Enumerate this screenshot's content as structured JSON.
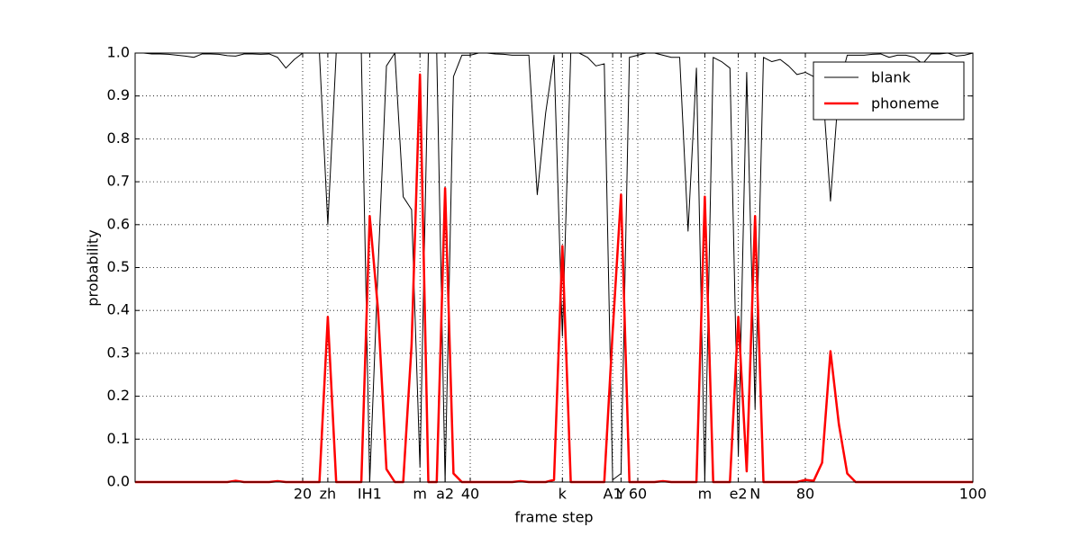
{
  "chart_data": {
    "type": "line",
    "xlabel": "frame step",
    "ylabel": "probability",
    "x": [
      0,
      1,
      2,
      3,
      4,
      5,
      6,
      7,
      8,
      9,
      10,
      11,
      12,
      13,
      14,
      15,
      16,
      17,
      18,
      19,
      20,
      21,
      22,
      23,
      24,
      25,
      26,
      27,
      28,
      29,
      30,
      31,
      32,
      33,
      34,
      35,
      36,
      37,
      38,
      39,
      40,
      41,
      42,
      43,
      44,
      45,
      46,
      47,
      48,
      49,
      50,
      51,
      52,
      53,
      54,
      55,
      56,
      57,
      58,
      59,
      60,
      61,
      62,
      63,
      64,
      65,
      66,
      67,
      68,
      69,
      70,
      71,
      72,
      73,
      74,
      75,
      76,
      77,
      78,
      79,
      80,
      81,
      82,
      83,
      84,
      85,
      86,
      87,
      88,
      89,
      90,
      91,
      92,
      93,
      94,
      95,
      96,
      97,
      98,
      99,
      100
    ],
    "series": [
      {
        "name": "blank",
        "color": "#000000",
        "width": 1,
        "values": [
          1,
          1,
          0.998,
          0.998,
          0.997,
          0.995,
          0.993,
          0.99,
          0.998,
          0.998,
          0.997,
          0.994,
          0.993,
          0.998,
          0.998,
          0.997,
          0.998,
          0.99,
          0.965,
          0.985,
          1,
          1,
          1,
          0.6,
          1,
          1,
          1,
          1,
          0,
          0.5,
          0.97,
          1,
          0.665,
          0.635,
          0.035,
          1,
          1,
          0,
          0.945,
          0.995,
          0.995,
          1,
          1,
          0.998,
          0.997,
          0.995,
          0.995,
          0.995,
          0.67,
          0.86,
          0.995,
          0.34,
          1,
          1,
          0.99,
          0.97,
          0.975,
          0.005,
          0.02,
          0.99,
          0.995,
          1,
          1,
          0.995,
          0.99,
          0.99,
          0.585,
          0.965,
          0,
          0.99,
          0.98,
          0.965,
          0.06,
          0.955,
          0.17,
          0.99,
          0.98,
          0.985,
          0.97,
          0.95,
          0.955,
          0.945,
          0.94,
          0.655,
          0.92,
          0.995,
          0.995,
          0.995,
          0.997,
          0.998,
          0.99,
          0.995,
          0.995,
          0.99,
          0.975,
          0.998,
          0.998,
          1,
          0.993,
          0.995,
          1
        ]
      },
      {
        "name": "phoneme",
        "color": "#ff0000",
        "width": 2.5,
        "values": [
          0,
          0,
          0,
          0,
          0,
          0,
          0,
          0,
          0,
          0,
          0,
          0,
          0.003,
          0,
          0,
          0,
          0,
          0.002,
          0,
          0,
          0,
          0,
          0,
          0.385,
          0,
          0,
          0,
          0,
          0.62,
          0.4,
          0.03,
          0,
          0,
          0.32,
          0.95,
          0,
          0,
          0.685,
          0.02,
          0,
          0,
          0,
          0,
          0,
          0,
          0,
          0.002,
          0,
          0,
          0,
          0.005,
          0.55,
          0,
          0,
          0,
          0,
          0,
          0.35,
          0.67,
          0,
          0,
          0,
          0,
          0.002,
          0,
          0,
          0,
          0,
          0.665,
          0,
          0,
          0,
          0.385,
          0.025,
          0.62,
          0,
          0,
          0,
          0,
          0,
          0.005,
          0.003,
          0.045,
          0.305,
          0.135,
          0.02,
          0,
          0,
          0,
          0,
          0,
          0,
          0,
          0,
          0,
          0,
          0,
          0,
          0,
          0,
          0
        ]
      }
    ],
    "xlim": [
      0,
      100
    ],
    "ylim": [
      0,
      1
    ],
    "xticks": [
      20,
      {
        "value": 23,
        "label": "zh"
      },
      {
        "value": 28,
        "label": "IH1"
      },
      {
        "value": 34,
        "label": "m"
      },
      {
        "value": 37,
        "label": "a2"
      },
      40,
      {
        "value": 51,
        "label": "k"
      },
      {
        "value": 57,
        "label": "A1"
      },
      {
        "value": 58,
        "label": "Y"
      },
      60,
      {
        "value": 68,
        "label": "m"
      },
      {
        "value": 72,
        "label": "e2"
      },
      {
        "value": 74,
        "label": "N"
      },
      80,
      100
    ],
    "yticks": [
      {
        "value": 0,
        "label": "0.0"
      },
      0.1,
      0.2,
      0.3,
      0.4,
      0.5,
      0.6,
      0.7,
      0.8,
      0.9,
      {
        "value": 1,
        "label": "1.0"
      }
    ],
    "grid": true,
    "legend": "upper right"
  }
}
